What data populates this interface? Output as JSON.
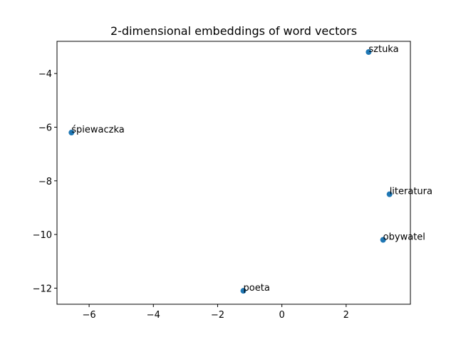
{
  "chart_data": {
    "type": "scatter",
    "title": "2-dimensional embeddings of word vectors",
    "xlabel": "",
    "ylabel": "",
    "xlim": [
      -7.0,
      4.0
    ],
    "ylim": [
      -12.6,
      -2.8
    ],
    "xticks": [
      -6,
      -4,
      -2,
      0,
      2
    ],
    "xtick_labels": [
      "−6",
      "−4",
      "−2",
      "0",
      "2"
    ],
    "yticks": [
      -4,
      -6,
      -8,
      -10,
      -12
    ],
    "ytick_labels": [
      "−4",
      "−6",
      "−8",
      "−10",
      "−12"
    ],
    "grid": false,
    "point_color": "#1f77b4",
    "points": [
      {
        "label": "sztuka",
        "x": 2.7,
        "y": -3.2
      },
      {
        "label": "śpiewaczka",
        "x": -6.55,
        "y": -6.2
      },
      {
        "label": "literatura",
        "x": 3.35,
        "y": -8.5
      },
      {
        "label": "obywatel",
        "x": 3.15,
        "y": -10.2
      },
      {
        "label": "poeta",
        "x": -1.2,
        "y": -12.1
      }
    ]
  }
}
